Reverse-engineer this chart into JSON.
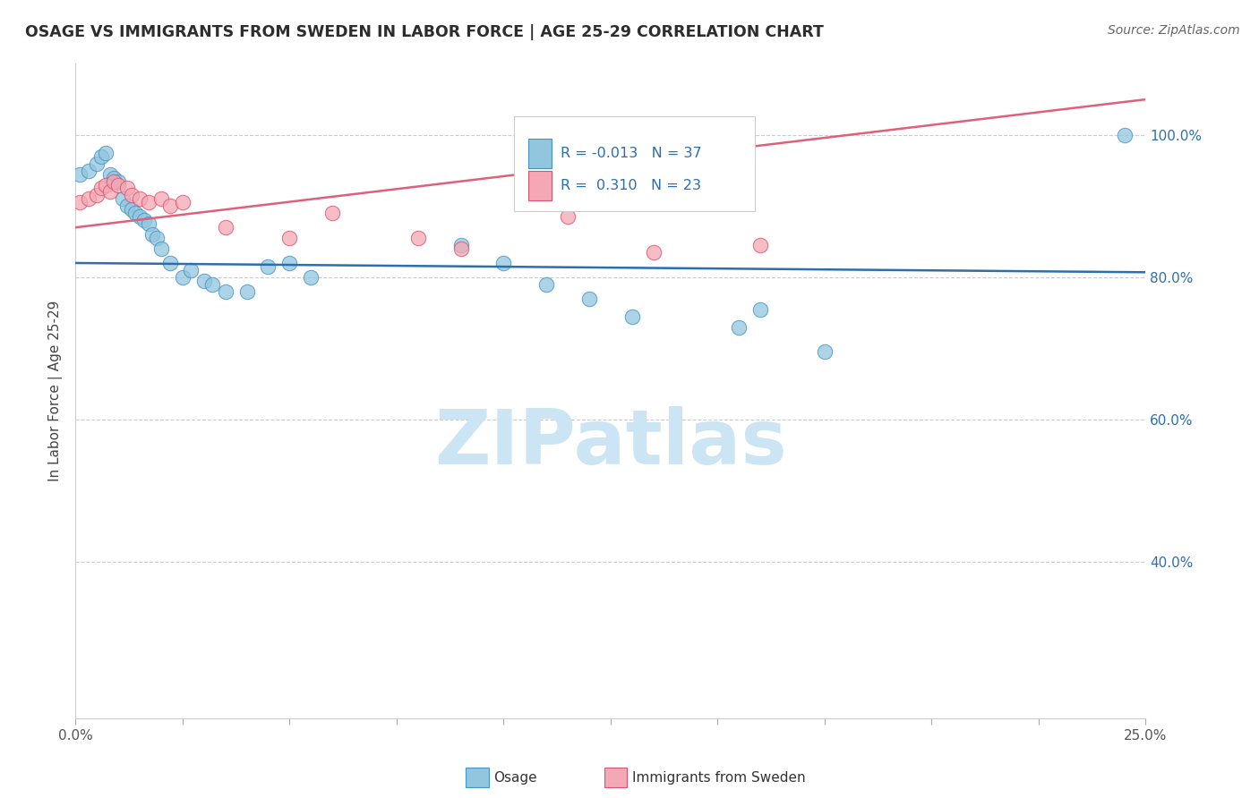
{
  "title": "OSAGE VS IMMIGRANTS FROM SWEDEN IN LABOR FORCE | AGE 25-29 CORRELATION CHART",
  "source": "Source: ZipAtlas.com",
  "ylabel": "In Labor Force | Age 25-29",
  "xlim": [
    0.0,
    0.25
  ],
  "ylim": [
    0.18,
    1.1
  ],
  "xticks": [
    0.0,
    0.025,
    0.05,
    0.075,
    0.1,
    0.125,
    0.15,
    0.175,
    0.2,
    0.225,
    0.25
  ],
  "xticklabels_show": {
    "0.0": "0.0%",
    "0.25": "25.0%"
  },
  "ytick_positions": [
    0.4,
    0.6,
    0.8,
    1.0
  ],
  "ytick_labels": [
    "40.0%",
    "60.0%",
    "80.0%",
    "100.0%"
  ],
  "blue_color": "#92c5de",
  "pink_color": "#f4a7b5",
  "blue_edge": "#4393c3",
  "pink_edge": "#d6546c",
  "line_blue": "#2c6fad",
  "line_pink": "#e0607a",
  "legend_r1": "-0.013",
  "legend_n1": "37",
  "legend_r2": "0.310",
  "legend_n2": "23",
  "legend_label1": "Osage",
  "legend_label2": "Immigrants from Sweden",
  "watermark": "ZIPatlas",
  "watermark_color": "#cce5f5",
  "blue_scatter_x": [
    0.001,
    0.003,
    0.005,
    0.006,
    0.007,
    0.008,
    0.009,
    0.01,
    0.011,
    0.012,
    0.013,
    0.014,
    0.015,
    0.016,
    0.017,
    0.018,
    0.019,
    0.02,
    0.022,
    0.025,
    0.027,
    0.03,
    0.032,
    0.035,
    0.04,
    0.045,
    0.05,
    0.055,
    0.09,
    0.1,
    0.11,
    0.13,
    0.155,
    0.16,
    0.175,
    0.245,
    0.12
  ],
  "blue_scatter_y": [
    0.945,
    0.95,
    0.96,
    0.97,
    0.975,
    0.945,
    0.94,
    0.935,
    0.91,
    0.9,
    0.895,
    0.89,
    0.885,
    0.88,
    0.875,
    0.86,
    0.855,
    0.84,
    0.82,
    0.8,
    0.81,
    0.795,
    0.79,
    0.78,
    0.78,
    0.815,
    0.82,
    0.8,
    0.845,
    0.82,
    0.79,
    0.745,
    0.73,
    0.755,
    0.695,
    1.0,
    0.77
  ],
  "pink_scatter_x": [
    0.001,
    0.003,
    0.005,
    0.006,
    0.007,
    0.008,
    0.009,
    0.01,
    0.012,
    0.013,
    0.015,
    0.017,
    0.02,
    0.022,
    0.025,
    0.035,
    0.06,
    0.08,
    0.115,
    0.135,
    0.16,
    0.05,
    0.09
  ],
  "pink_scatter_y": [
    0.905,
    0.91,
    0.915,
    0.925,
    0.93,
    0.92,
    0.935,
    0.93,
    0.925,
    0.915,
    0.91,
    0.905,
    0.91,
    0.9,
    0.905,
    0.87,
    0.89,
    0.855,
    0.885,
    0.835,
    0.845,
    0.855,
    0.84
  ],
  "blue_trend_x": [
    0.0,
    0.25
  ],
  "blue_trend_y": [
    0.82,
    0.807
  ],
  "pink_trend_x": [
    0.0,
    0.25
  ],
  "pink_trend_y": [
    0.87,
    1.05
  ]
}
